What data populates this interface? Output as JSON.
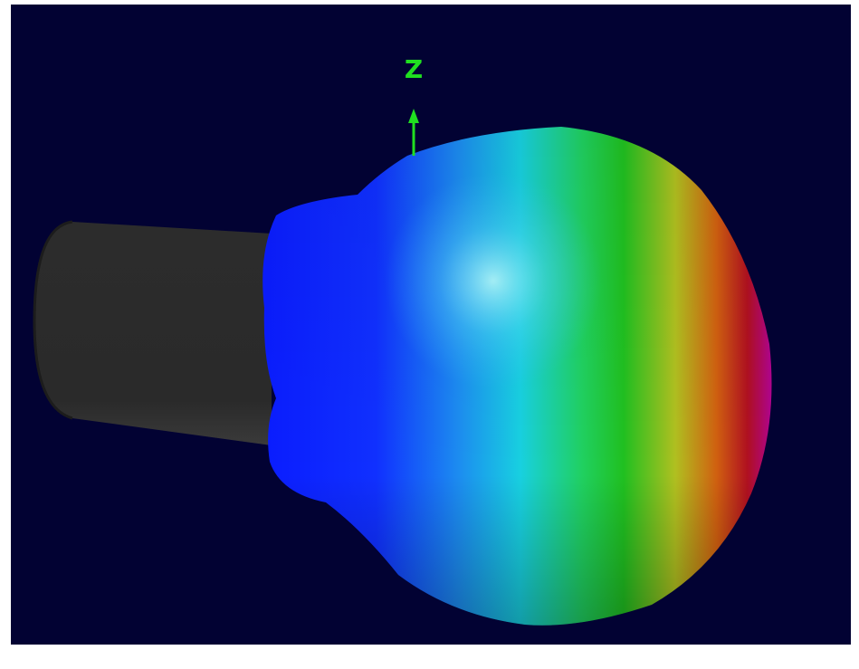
{
  "axis_label": "Z"
}
